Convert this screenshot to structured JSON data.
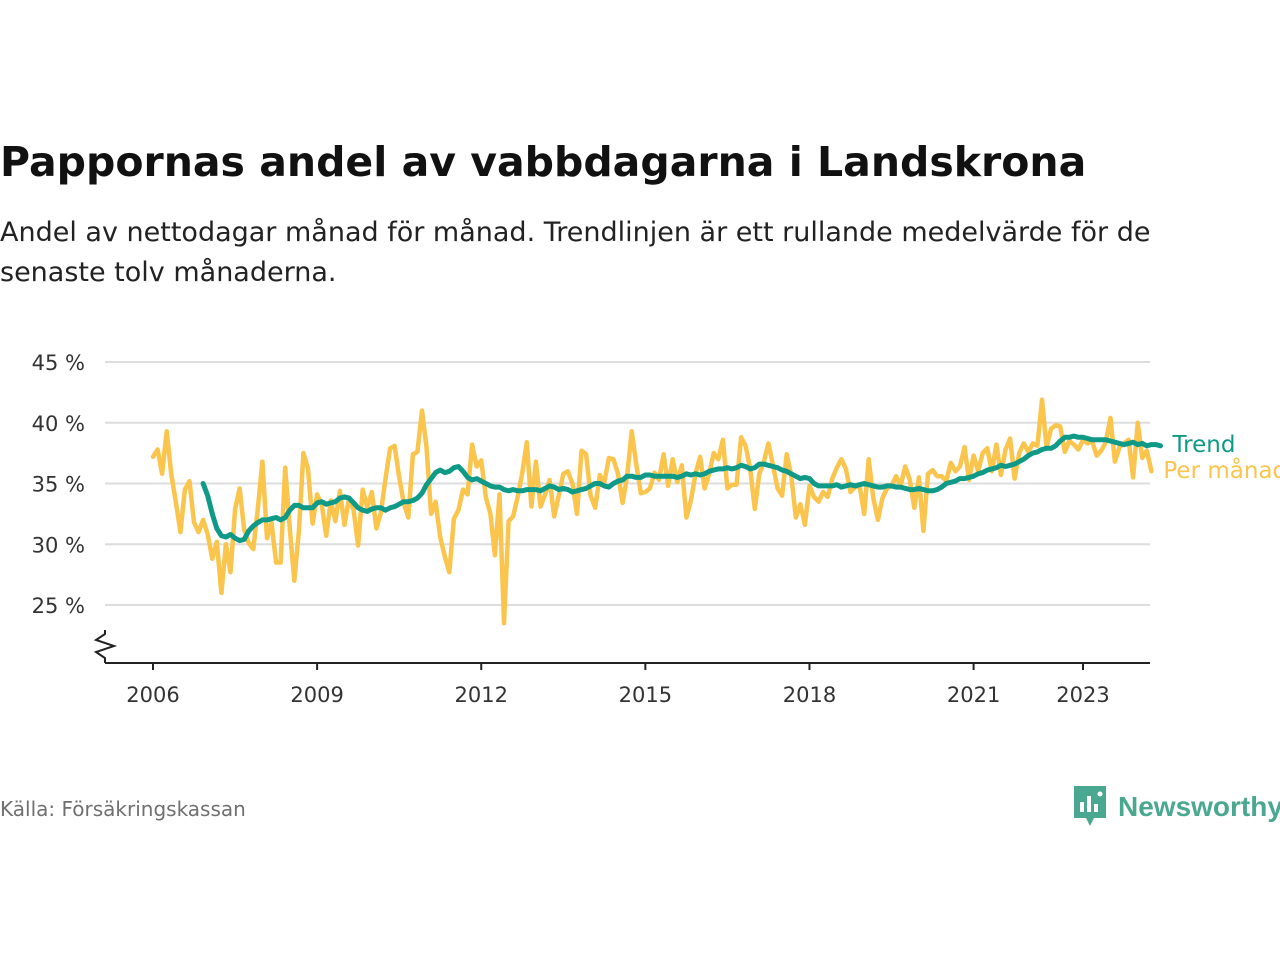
{
  "title": "Pappornas andel av vabbdagarna i Landskrona",
  "subtitle": "Andel av nettodagar månad för månad. Trendlinjen är ett rullande medelvärde för de senaste tolv månaderna.",
  "source": "Källa: Försäkringskassan",
  "brand": {
    "name": "Newsworthy",
    "icon": "newsworthy-logo-icon"
  },
  "colors": {
    "trend": "#0f9a87",
    "monthly": "#fbc44d",
    "grid": "#dddddd",
    "axis": "#222222"
  },
  "chart_data": {
    "type": "line",
    "title": "Pappornas andel av vabbdagarna i Landskrona",
    "ylabel": "",
    "xlabel": "",
    "ylim": [
      20,
      45
    ],
    "axis_break": true,
    "grid": true,
    "y_ticks": [
      25,
      30,
      35,
      40,
      45
    ],
    "y_tick_labels": [
      "25 %",
      "30 %",
      "35 %",
      "40 %",
      "45 %"
    ],
    "x_ticks": [
      2006,
      2009,
      2012,
      2015,
      2018,
      2021,
      2023
    ],
    "x_tick_labels": [
      "2006",
      "2009",
      "2012",
      "2015",
      "2018",
      "2021",
      "2023"
    ],
    "series": [
      {
        "name": "Per månad",
        "start": "2006-01",
        "frequency": "monthly",
        "values": [
          37.2,
          37.8,
          35.8,
          39.3,
          35.8,
          33.5,
          31.0,
          34.5,
          35.2,
          31.8,
          31.0,
          32.0,
          30.8,
          28.8,
          30.2,
          26.0,
          30.0,
          27.7,
          32.9,
          34.6,
          31.2,
          30.1,
          29.6,
          33.0,
          36.8,
          30.5,
          31.8,
          28.5,
          28.5,
          36.3,
          31.3,
          27.0,
          31.1,
          37.5,
          36.2,
          31.7,
          34.1,
          33.3,
          30.7,
          33.6,
          31.9,
          34.4,
          31.6,
          33.8,
          32.8,
          29.9,
          34.5,
          33.0,
          34.3,
          31.3,
          32.6,
          35.4,
          37.9,
          38.1,
          35.5,
          33.4,
          32.2,
          37.4,
          37.6,
          41.0,
          38.0,
          32.5,
          33.5,
          30.6,
          29.0,
          27.7,
          32.1,
          32.8,
          34.5,
          34.1,
          38.2,
          36.4,
          36.9,
          33.9,
          32.5,
          29.1,
          34.1,
          23.5,
          31.9,
          32.3,
          33.9,
          35.9,
          38.4,
          33.1,
          36.8,
          33.1,
          34.1,
          35.3,
          32.3,
          34.0,
          35.8,
          36.0,
          35.0,
          32.5,
          37.7,
          37.4,
          34.0,
          33.0,
          35.7,
          35.1,
          37.1,
          37.0,
          35.8,
          33.4,
          35.6,
          39.3,
          36.6,
          34.2,
          34.3,
          34.6,
          35.9,
          35.3,
          37.4,
          34.8,
          37.0,
          35.1,
          36.5,
          32.2,
          33.6,
          35.8,
          37.2,
          34.6,
          35.8,
          37.5,
          37.0,
          38.6,
          34.6,
          34.9,
          34.9,
          38.8,
          38.1,
          36.2,
          32.9,
          35.8,
          36.8,
          38.3,
          36.5,
          34.6,
          34.0,
          37.4,
          35.7,
          32.2,
          33.3,
          31.6,
          34.8,
          33.9,
          33.5,
          34.3,
          33.9,
          35.4,
          36.3,
          37.0,
          36.2,
          34.3,
          34.7,
          34.8,
          32.5,
          37.0,
          33.8,
          32.0,
          33.8,
          34.6,
          34.8,
          35.6,
          34.8,
          36.4,
          35.3,
          33.0,
          35.5,
          31.1,
          35.8,
          36.1,
          35.6,
          35.6,
          35.2,
          36.7,
          36.0,
          36.4,
          38.0,
          35.3,
          37.3,
          36.0,
          37.5,
          37.9,
          36.0,
          38.2,
          35.7,
          37.8,
          38.7,
          35.4,
          37.5,
          38.3,
          37.6,
          38.3,
          38.1,
          41.9,
          38.0,
          39.5,
          39.8,
          39.7,
          37.6,
          38.5,
          38.2,
          37.8,
          38.6,
          38.3,
          38.5,
          37.3,
          37.7,
          38.4,
          40.4,
          36.8,
          38.0,
          38.3,
          38.6,
          35.5,
          40.0,
          37.1,
          37.7,
          36.0
        ]
      },
      {
        "name": "Trend",
        "start": "2006-12",
        "frequency": "monthly",
        "values": [
          35.0,
          34.0,
          32.5,
          31.3,
          30.7,
          30.6,
          30.8,
          30.5,
          30.3,
          30.4,
          31.1,
          31.5,
          31.8,
          32.0,
          32.0,
          32.1,
          32.2,
          32.0,
          32.2,
          32.8,
          33.2,
          33.2,
          33.0,
          33.0,
          33.0,
          33.4,
          33.5,
          33.3,
          33.4,
          33.5,
          33.8,
          33.9,
          33.8,
          33.4,
          33.0,
          32.8,
          32.7,
          32.9,
          33.0,
          33.0,
          32.8,
          33.0,
          33.1,
          33.3,
          33.5,
          33.5,
          33.6,
          33.8,
          34.2,
          34.9,
          35.4,
          35.9,
          36.1,
          35.9,
          36.0,
          36.3,
          36.4,
          36.0,
          35.5,
          35.3,
          35.4,
          35.2,
          35.0,
          34.8,
          34.7,
          34.7,
          34.5,
          34.4,
          34.5,
          34.4,
          34.4,
          34.5,
          34.5,
          34.5,
          34.4,
          34.6,
          34.8,
          34.7,
          34.5,
          34.6,
          34.5,
          34.3,
          34.4,
          34.5,
          34.6,
          34.8,
          35.0,
          35.0,
          34.8,
          34.7,
          35.0,
          35.2,
          35.3,
          35.6,
          35.6,
          35.5,
          35.5,
          35.7,
          35.7,
          35.6,
          35.6,
          35.6,
          35.6,
          35.6,
          35.5,
          35.6,
          35.8,
          35.7,
          35.8,
          35.7,
          35.8,
          36.0,
          36.1,
          36.2,
          36.2,
          36.3,
          36.2,
          36.3,
          36.5,
          36.4,
          36.2,
          36.3,
          36.6,
          36.6,
          36.5,
          36.4,
          36.3,
          36.1,
          36.0,
          35.8,
          35.6,
          35.4,
          35.5,
          35.4,
          35.0,
          34.8,
          34.8,
          34.8,
          34.8,
          34.9,
          34.7,
          34.8,
          34.9,
          34.8,
          34.9,
          35.0,
          34.9,
          34.8,
          34.7,
          34.7,
          34.8,
          34.8,
          34.7,
          34.7,
          34.6,
          34.5,
          34.5,
          34.6,
          34.5,
          34.4,
          34.4,
          34.5,
          34.7,
          35.0,
          35.1,
          35.2,
          35.4,
          35.4,
          35.5,
          35.6,
          35.8,
          35.9,
          36.1,
          36.2,
          36.3,
          36.5,
          36.4,
          36.5,
          36.6,
          36.8,
          37.0,
          37.3,
          37.5,
          37.6,
          37.8,
          37.9,
          37.9,
          38.1,
          38.5,
          38.8,
          38.8,
          38.9,
          38.8,
          38.8,
          38.7,
          38.6,
          38.6,
          38.6,
          38.6,
          38.5,
          38.4,
          38.3,
          38.2,
          38.3,
          38.4,
          38.2,
          38.3,
          38.1,
          38.2,
          38.2,
          38.1
        ]
      }
    ]
  }
}
